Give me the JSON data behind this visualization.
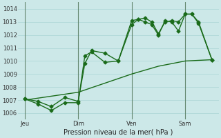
{
  "title": "",
  "xlabel": "Pression niveau de la mer( hPa )",
  "bg_color": "#cce8e8",
  "grid_color": "#aad4d4",
  "line_color": "#1a6b1a",
  "vline_color": "#446644",
  "ylim": [
    1005.5,
    1014.5
  ],
  "yticks": [
    1006,
    1007,
    1008,
    1009,
    1010,
    1011,
    1012,
    1013,
    1014
  ],
  "xlim": [
    -3,
    87
  ],
  "xtick_labels": [
    "Jeu",
    "Dim",
    "Ven",
    "Sam"
  ],
  "xtick_positions": [
    0,
    24,
    48,
    72
  ],
  "vlines": [
    0,
    24,
    48,
    72
  ],
  "series1": {
    "x": [
      0,
      6,
      12,
      18,
      24,
      27,
      30,
      36,
      42,
      48,
      51,
      54,
      57,
      60,
      63,
      66,
      69,
      72,
      75,
      78,
      84
    ],
    "y": [
      1007.1,
      1006.9,
      1006.5,
      1007.2,
      1006.9,
      1009.8,
      1010.8,
      1010.6,
      1010.0,
      1012.8,
      1013.2,
      1013.3,
      1013.0,
      1012.1,
      1013.0,
      1013.1,
      1013.0,
      1013.6,
      1013.6,
      1013.0,
      1010.1
    ]
  },
  "series2": {
    "x": [
      0,
      6,
      12,
      18,
      24,
      27,
      30,
      36,
      42,
      48,
      51,
      54,
      57,
      60,
      63,
      66,
      69,
      72,
      75,
      78,
      84
    ],
    "y": [
      1007.1,
      1006.7,
      1006.2,
      1006.8,
      1006.8,
      1010.4,
      1010.7,
      1009.9,
      1010.0,
      1013.1,
      1013.2,
      1013.0,
      1012.8,
      1012.0,
      1013.1,
      1013.0,
      1012.3,
      1013.6,
      1013.6,
      1012.9,
      1010.1
    ]
  },
  "series3": {
    "x": [
      0,
      12,
      24,
      36,
      48,
      60,
      72,
      84
    ],
    "y": [
      1007.0,
      1007.3,
      1007.6,
      1008.3,
      1009.0,
      1009.6,
      1010.0,
      1010.1
    ]
  },
  "markersize": 2.5,
  "linewidth": 1.0,
  "xlabel_fontsize": 7,
  "tick_fontsize": 6
}
